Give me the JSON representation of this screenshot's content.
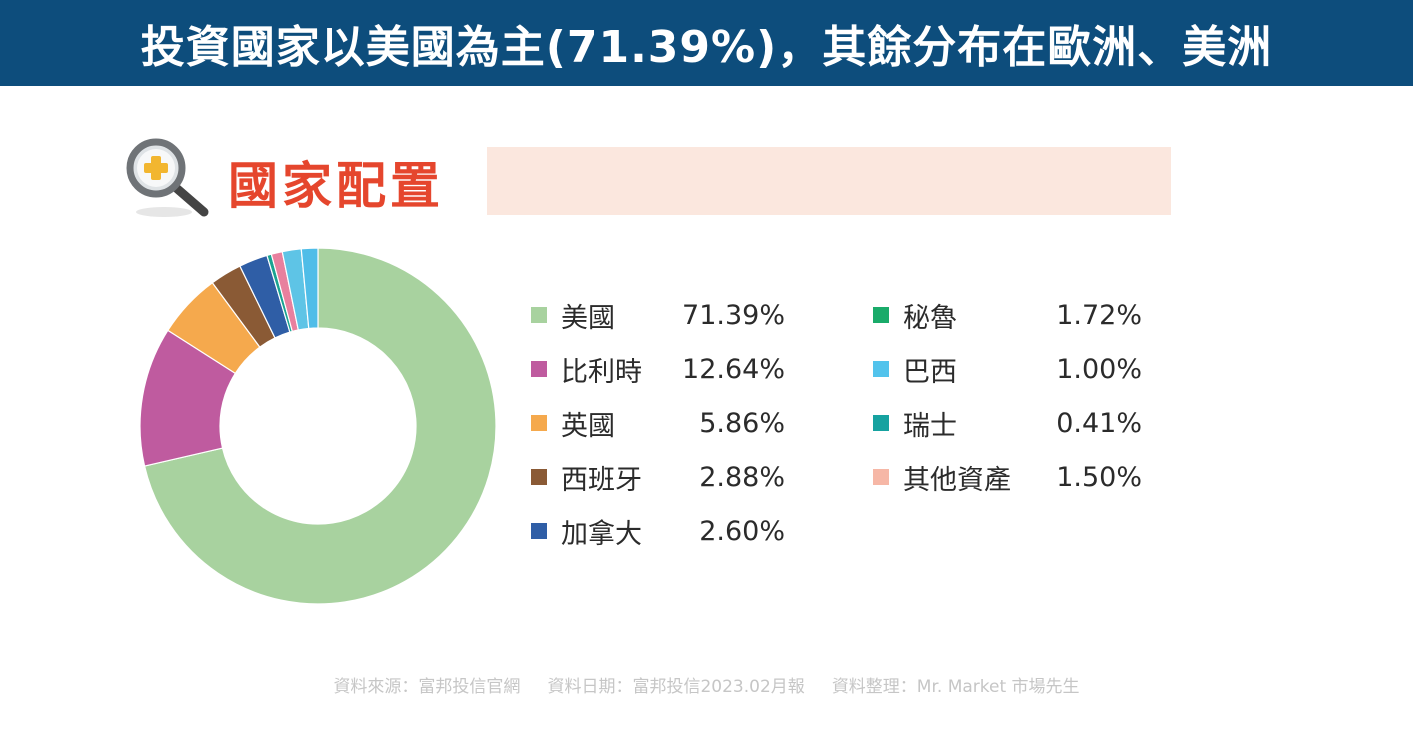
{
  "header": {
    "title": "投資國家以美國為主(71.39%)，其餘分布在歐洲、美洲"
  },
  "section": {
    "title": "國家配置",
    "icon": "magnifier-plus-icon"
  },
  "chart_data": {
    "type": "pie",
    "style": "donut",
    "categories": [
      "美國",
      "比利時",
      "英國",
      "西班牙",
      "加拿大",
      "秘魯",
      "巴西",
      "瑞士",
      "其他資產"
    ],
    "values": [
      71.39,
      12.64,
      5.86,
      2.88,
      2.6,
      1.72,
      1.0,
      0.41,
      1.5
    ],
    "value_labels": [
      "71.39%",
      "12.64%",
      "5.86%",
      "2.88%",
      "2.60%",
      "1.72%",
      "1.00%",
      "0.41%",
      "1.50%"
    ],
    "colors": [
      "#a8d29f",
      "#bf5b9f",
      "#f5a94d",
      "#8a5a35",
      "#2f5ea6",
      "#5ec4e6",
      "#e8809e",
      "#1aa391",
      "#4fbde8"
    ],
    "legend_colors": [
      "#a8d29f",
      "#bf5b9f",
      "#f5a94d",
      "#8a5a35",
      "#2f5ea6",
      "#1aab6a",
      "#52c3ec",
      "#16a2a0",
      "#f6b7a6"
    ],
    "legend_placement": "right"
  },
  "footer": {
    "source": "資料來源：富邦投信官網",
    "date": "資料日期：富邦投信2023.02月報",
    "compiler": "資料整理：Mr. Market 市場先生"
  }
}
